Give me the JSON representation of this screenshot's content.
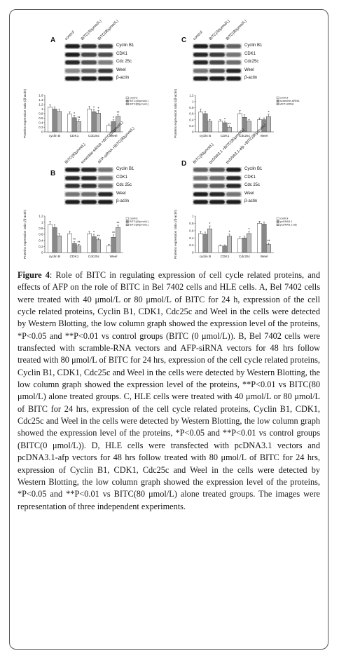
{
  "panels": [
    {
      "id": "A",
      "letter": "A",
      "lanes": [
        "control",
        "BITC(40μmol/L)",
        "BITC(80μmol/L)"
      ],
      "proteins": [
        "Cyclin B1",
        "CDK1",
        "Cdc 25c",
        "Weel",
        "β-actin"
      ],
      "band_intensity": [
        [
          0.95,
          0.85,
          0.8
        ],
        [
          0.95,
          0.75,
          0.7
        ],
        [
          0.9,
          0.7,
          0.45
        ],
        [
          0.4,
          0.6,
          0.8
        ],
        [
          0.95,
          0.95,
          0.95
        ]
      ]
    },
    {
      "id": "C",
      "letter": "C",
      "lanes": [
        "control",
        "BITC(40μmol/L)",
        "BITC(80μmol/L)"
      ],
      "proteins": [
        "Cyclin B1",
        "CDK1",
        "Cdc25c",
        "Weel",
        "β-actin"
      ],
      "band_intensity": [
        [
          0.95,
          0.85,
          0.6
        ],
        [
          0.9,
          0.8,
          0.5
        ],
        [
          0.9,
          0.75,
          0.55
        ],
        [
          0.5,
          0.7,
          0.9
        ],
        [
          0.95,
          0.95,
          0.95
        ]
      ]
    },
    {
      "id": "B",
      "letter": "B",
      "lanes": [
        "BITC(80μmol/L)",
        "scramble-siRNA +BITC(80μmol/L)",
        "AFP-siRNA +BITC(80μmol/L)"
      ],
      "proteins": [
        "Cyclin B1",
        "CDK1",
        "Cdc 25c",
        "Weel",
        "β-actin"
      ],
      "band_intensity": [
        [
          0.95,
          0.9,
          0.5
        ],
        [
          0.9,
          0.9,
          0.5
        ],
        [
          0.85,
          0.85,
          0.55
        ],
        [
          0.5,
          0.55,
          0.9
        ],
        [
          0.95,
          0.95,
          0.95
        ]
      ]
    },
    {
      "id": "D",
      "letter": "D",
      "lanes": [
        "BITC(80μmol/L)",
        "pcDNA3.1 +BITC(80μmol/L)",
        "pcDNA3.1-afp +BITC(80μmol/L)"
      ],
      "proteins": [
        "Cyclin B1",
        "CDK1",
        "Cdc 25c",
        "Weel",
        "β-actin"
      ],
      "band_intensity": [
        [
          0.6,
          0.65,
          0.95
        ],
        [
          0.5,
          0.55,
          0.9
        ],
        [
          0.6,
          0.65,
          0.9
        ],
        [
          0.95,
          0.9,
          0.5
        ],
        [
          0.95,
          0.95,
          0.95
        ]
      ]
    }
  ],
  "chart_data": [
    {
      "panel": "A",
      "type": "bar",
      "ylabel": "Proteins expression ratio (/β-actin)",
      "categories": [
        "cyclin B",
        "CDK1",
        "Cdc25c",
        "Weel"
      ],
      "ylim": [
        0,
        1.6
      ],
      "yticks": [
        "0",
        "0.2",
        "0.4",
        "0.6",
        "0.8",
        "1",
        "1.2",
        "1.4",
        "1.6"
      ],
      "series": [
        {
          "name": "control",
          "values": [
            1.08,
            0.78,
            1.0,
            0.28
          ],
          "color": "#ffffff"
        },
        {
          "name": "BITC(40μmol/L)",
          "values": [
            1.0,
            0.62,
            0.88,
            0.45
          ],
          "color": "#888888"
        },
        {
          "name": "BITC(80μmol/L)",
          "values": [
            0.9,
            0.45,
            0.82,
            0.68
          ],
          "color": "#bdbdbd"
        }
      ],
      "errors": [
        [
          0.12,
          0.1,
          0.12,
          0.06
        ],
        [
          0.1,
          0.1,
          0.1,
          0.08
        ],
        [
          0.1,
          0.08,
          0.12,
          0.08
        ]
      ],
      "stars": [
        [
          "",
          "",
          ""
        ],
        [
          "",
          "*",
          "**"
        ],
        [
          "",
          "*",
          "*"
        ],
        [
          "",
          "*",
          "**"
        ]
      ]
    },
    {
      "panel": "C",
      "type": "bar",
      "ylabel": "Proteins expression ratio (/β-actin)",
      "categories": [
        "cyclin B",
        "CDK1",
        "Cdc25c",
        "Weel"
      ],
      "ylim": [
        0,
        1.2
      ],
      "yticks": [
        "0",
        "0.2",
        "0.4",
        "0.6",
        "0.8",
        "1",
        "1.2"
      ],
      "series": [
        {
          "name": "control",
          "values": [
            0.65,
            0.35,
            0.6,
            0.4
          ],
          "color": "#ffffff"
        },
        {
          "name": "scramble-siRNA",
          "values": [
            0.6,
            0.3,
            0.48,
            0.4
          ],
          "color": "#888888"
        },
        {
          "name": "AFP-siRNA",
          "values": [
            0.35,
            0.15,
            0.35,
            0.5
          ],
          "color": "#bdbdbd"
        }
      ],
      "errors": [
        [
          0.1,
          0.05,
          0.1,
          0.06
        ],
        [
          0.08,
          0.05,
          0.08,
          0.06
        ],
        [
          0.06,
          0.04,
          0.06,
          0.08
        ]
      ],
      "stars": [
        [
          "",
          "",
          ""
        ],
        [
          "",
          "*",
          "**"
        ],
        [
          "",
          "",
          ""
        ],
        [
          "",
          "",
          "*"
        ]
      ]
    },
    {
      "panel": "B",
      "type": "bar",
      "ylabel": "Proteins expression ratio (/β-actin)",
      "categories": [
        "cyclin B",
        "CDK1",
        "Cdc25c",
        "Weel"
      ],
      "ylim": [
        0,
        1.2
      ],
      "yticks": [
        "0",
        "0.2",
        "0.4",
        "0.6",
        "0.8",
        "1",
        "1.2"
      ],
      "series": [
        {
          "name": "control",
          "values": [
            0.92,
            0.62,
            0.62,
            0.22
          ],
          "color": "#ffffff"
        },
        {
          "name": "BITC(40μmol/L)",
          "values": [
            0.82,
            0.3,
            0.52,
            0.5
          ],
          "color": "#888888"
        },
        {
          "name": "BITC(80μmol/L)",
          "values": [
            0.55,
            0.22,
            0.42,
            0.82
          ],
          "color": "#bdbdbd"
        }
      ],
      "errors": [
        [
          0.1,
          0.08,
          0.08,
          0.05
        ],
        [
          0.1,
          0.06,
          0.08,
          0.08
        ],
        [
          0.08,
          0.05,
          0.06,
          0.08
        ]
      ],
      "stars": [
        [
          "",
          "",
          ""
        ],
        [
          "",
          "**",
          "**"
        ],
        [
          "",
          "*",
          "**"
        ],
        [
          "",
          "**",
          "**"
        ]
      ]
    },
    {
      "panel": "D",
      "type": "bar",
      "ylabel": "Proteins expression ratio (/β-actin)",
      "categories": [
        "cyclin B",
        "CDK1",
        "Cdc25c",
        "Weel"
      ],
      "ylim": [
        0,
        1
      ],
      "yticks": [
        "0",
        "0.2",
        "0.4",
        "0.6",
        "0.8",
        "1"
      ],
      "series": [
        {
          "name": "control",
          "values": [
            0.52,
            0.18,
            0.38,
            0.8
          ],
          "color": "#ffffff"
        },
        {
          "name": "pcDNA3.1",
          "values": [
            0.5,
            0.18,
            0.4,
            0.78
          ],
          "color": "#888888"
        },
        {
          "name": "pcDNA3.1-afp",
          "values": [
            0.65,
            0.45,
            0.52,
            0.22
          ],
          "color": "#bdbdbd"
        }
      ],
      "errors": [
        [
          0.06,
          0.03,
          0.05,
          0.06
        ],
        [
          0.06,
          0.03,
          0.05,
          0.06
        ],
        [
          0.08,
          0.06,
          0.06,
          0.04
        ]
      ],
      "stars": [
        [
          "",
          "",
          "*"
        ],
        [
          "",
          "",
          "*"
        ],
        [
          "",
          "",
          "*"
        ],
        [
          "",
          "",
          "**"
        ]
      ]
    }
  ],
  "caption": {
    "label": "Figure 4",
    "text": ": Role of BITC in regulating expression of cell cycle related proteins, and effects of AFP on the role of BITC in Bel 7402 cells and HLE cells. A, Bel 7402 cells were treated with 40 μmol/L or 80 μmol/L of BITC for 24 h, expression of the cell cycle related proteins, Cyclin B1, CDK1, Cdc25c and Weel in the cells were detected by Western Blotting, the low column graph showed the expression level of the proteins, *P<0.05 and **P<0.01 vs control groups (BITC (0 μmol/L)). B, Bel 7402 cells were transfected with scramble-RNA vectors and AFP-siRNA vectors for 48 hrs follow treated with 80 μmol/L of BITC for 24 hrs, expression of the cell cycle related proteins, Cyclin B1, CDK1, Cdc25c and Weel in the cells were detected by Western Blotting, the low column graph showed the expression level of the proteins, **P<0.01 vs BITC(80 μmol/L) alone treated groups. C, HLE cells were treated with 40 μmol/L or 80 μmol/L of BITC for 24 hrs, expression of the cell cycle related proteins, Cyclin B1, CDK1, Cdc25c and Weel in the cells were detected by Western Blotting, the low column graph showed the expression level of the proteins, *P<0.05 and **P<0.01 vs control groups (BITC(0 μmol/L)). D, HLE cells were transfected with pcDNA3.1 vectors and pcDNA3.1-afp vectors for 48 hrs follow treated with 80 μmol/L of BITC for 24 hrs, expression of Cyclin B1, CDK1, Cdc25c and Weel in the cells were detected by Western Blotting, the low column graph showed the expression level of the proteins, *P<0.05 and **P<0.01 vs BITC(80 μmol/L) alone treated groups. The images were representation of three independent experiments."
  }
}
